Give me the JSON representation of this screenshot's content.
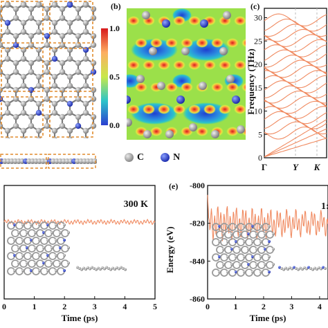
{
  "panels": {
    "b": {
      "label": "(b)"
    },
    "c": {
      "label": "(c)"
    },
    "e": {
      "label": "(e)"
    }
  },
  "colorbar": {
    "ticks": [
      "1.0",
      "0.5",
      "0.0"
    ]
  },
  "legend": {
    "items": [
      {
        "label": "C",
        "color": "#9a9a9a"
      },
      {
        "label": "N",
        "color": "#2f3fd0"
      }
    ]
  },
  "phonon": {
    "ylabel": "Frequency (THz)",
    "yticks": [
      "0",
      "5",
      "10",
      "15",
      "20",
      "25",
      "30"
    ],
    "xticks": [
      "Γ",
      "Y",
      "K"
    ]
  },
  "md_left": {
    "temperature_label": "300 K",
    "xlabel": "Time (ps)",
    "xticks": [
      "0",
      "1",
      "2",
      "3",
      "4",
      "5"
    ]
  },
  "md_right": {
    "temperature_label": "1:",
    "xlabel": "Time (ps)",
    "ylabel": "Energy (eV)",
    "yticks": [
      "-800",
      "-820",
      "-840",
      "-860"
    ],
    "xticks": [
      "0",
      "1",
      "2",
      "3",
      "4"
    ]
  },
  "colors": {
    "accent": "#f08a60",
    "carbon": "#9a9a9a",
    "nitrogen": "#2f3fd0",
    "cell": "#e08a2c"
  },
  "chart_data": [
    {
      "type": "line",
      "title": "",
      "xlabel": "Time (ps)",
      "ylabel": "",
      "xlim": [
        0,
        5
      ],
      "x": [
        0,
        0.5,
        1,
        1.5,
        2,
        2.5,
        3,
        3.5,
        4,
        4.5,
        5
      ],
      "series": [
        {
          "values": [
            0.6,
            0.62,
            0.6,
            0.63,
            0.61,
            0.6,
            0.62,
            0.61,
            0.6,
            0.62,
            0.61
          ]
        }
      ]
    },
    {
      "type": "line",
      "title": "",
      "xlabel": "Time (ps)",
      "ylabel": "Energy (eV)",
      "xlim": [
        0,
        4.3
      ],
      "ylim": [
        -860,
        -800
      ],
      "x": [
        0,
        0.5,
        1,
        1.5,
        2,
        2.5,
        3,
        3.5,
        4
      ],
      "series": [
        {
          "values": [
            -820,
            -818,
            -820,
            -819,
            -818,
            -820,
            -817,
            -819,
            -818
          ]
        }
      ]
    }
  ]
}
